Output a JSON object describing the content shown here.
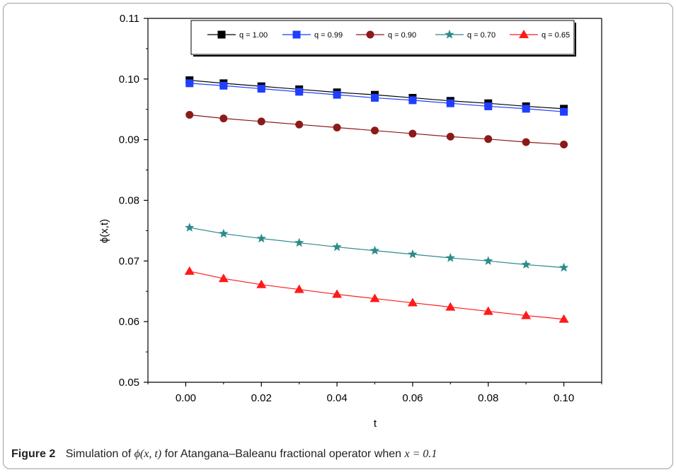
{
  "caption": {
    "figure_label": "Figure 2",
    "text_before": "Simulation of",
    "math_func": "ϕ(x, t)",
    "text_after": "for Atangana–Baleanu fractional operator when",
    "math_cond": "x = 0.1"
  },
  "chart_data": {
    "type": "line",
    "title": "",
    "xlabel": "t",
    "ylabel": "ϕ(x,t)",
    "xlim": [
      -0.01,
      0.11
    ],
    "ylim": [
      0.05,
      0.11
    ],
    "xticks": [
      0.0,
      0.02,
      0.04,
      0.06,
      0.08,
      0.1
    ],
    "xtick_labels": [
      "0.00",
      "0.02",
      "0.04",
      "0.06",
      "0.08",
      "0.10"
    ],
    "yticks": [
      0.05,
      0.06,
      0.07,
      0.08,
      0.09,
      0.1,
      0.11
    ],
    "ytick_labels": [
      "0.05",
      "0.06",
      "0.07",
      "0.08",
      "0.09",
      "0.10",
      "0.11"
    ],
    "grid": false,
    "legend_position": "top",
    "x": [
      0.001,
      0.01,
      0.02,
      0.03,
      0.04,
      0.05,
      0.06,
      0.07,
      0.08,
      0.09,
      0.1
    ],
    "series": [
      {
        "name": "q = 1.00",
        "color": "#000000",
        "marker": "square",
        "values": [
          0.0998,
          0.0993,
          0.0988,
          0.0983,
          0.0978,
          0.0974,
          0.0969,
          0.0964,
          0.096,
          0.0955,
          0.0951
        ]
      },
      {
        "name": "q = 0.99",
        "color": "#1f3fff",
        "marker": "square",
        "values": [
          0.0993,
          0.0989,
          0.0984,
          0.0979,
          0.0974,
          0.0969,
          0.0965,
          0.096,
          0.0955,
          0.0951,
          0.0946
        ]
      },
      {
        "name": "q = 0.90",
        "color": "#8b1a1a",
        "marker": "circle",
        "values": [
          0.0941,
          0.0935,
          0.093,
          0.0925,
          0.092,
          0.0915,
          0.091,
          0.0905,
          0.0901,
          0.0896,
          0.0892
        ]
      },
      {
        "name": "q = 0.70",
        "color": "#2e8b8b",
        "marker": "star",
        "values": [
          0.0755,
          0.0745,
          0.0737,
          0.073,
          0.0723,
          0.0717,
          0.0711,
          0.0705,
          0.07,
          0.0694,
          0.0689
        ]
      },
      {
        "name": "q = 0.65",
        "color": "#ff1a1a",
        "marker": "triangle",
        "values": [
          0.0683,
          0.0671,
          0.0661,
          0.0653,
          0.0645,
          0.0638,
          0.0631,
          0.0624,
          0.0617,
          0.061,
          0.0604
        ]
      }
    ]
  }
}
